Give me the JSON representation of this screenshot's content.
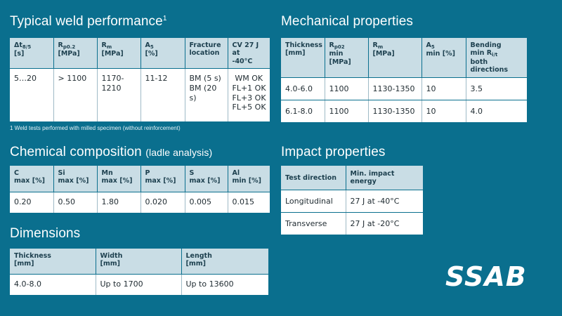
{
  "weld": {
    "title": "Typical weld performance",
    "title_sup": "1",
    "headers": {
      "delta_t": "Δt",
      "delta_t_sub": "8/5",
      "delta_t_unit": "[s]",
      "rp": "R",
      "rp_sub": "p0.2",
      "rp_unit": "[MPa]",
      "rm": "R",
      "rm_sub": "m",
      "rm_unit": "[MPa]",
      "a": "A",
      "a_sub": "5",
      "a_unit": "[%]",
      "fracture_1": "Fracture",
      "fracture_2": "location",
      "cv_1": "CV 27 J at",
      "cv_2": "-40°C"
    },
    "row": {
      "delta_t": "5…20",
      "rp": "> 1100",
      "rm_1": "1170-",
      "rm_2": "1210",
      "a": "11-12",
      "fracture_1": "BM (5 s)",
      "fracture_2": "BM (20 s)",
      "cv_1": "WM  OK",
      "cv_2": "FL+1  OK",
      "cv_3": "FL+3  OK",
      "cv_4": "FL+5  OK"
    },
    "footnote": "1 Weld tests performed with milled specimen (without reinforcement)"
  },
  "chemical": {
    "title": "Chemical composition",
    "subtitle": "(ladle analysis)",
    "headers": [
      {
        "el": "C",
        "unit": "max [%]"
      },
      {
        "el": "Si",
        "unit": "max [%]"
      },
      {
        "el": "Mn",
        "unit": "max [%]"
      },
      {
        "el": "P",
        "unit": "max [%]"
      },
      {
        "el": "S",
        "unit": "max [%]"
      },
      {
        "el": "Al",
        "unit": "min [%]"
      }
    ],
    "values": [
      "0.20",
      "0.50",
      "1.80",
      "0.020",
      "0.005",
      "0.015"
    ]
  },
  "dimensions": {
    "title": "Dimensions",
    "headers": [
      {
        "name": "Thickness",
        "unit": "[mm]"
      },
      {
        "name": "Width",
        "unit": "[mm]"
      },
      {
        "name": "Length",
        "unit": "[mm]"
      }
    ],
    "values": [
      "4.0-8.0",
      "Up to 1700",
      "Up to 13600"
    ]
  },
  "mechanical": {
    "title": "Mechanical properties",
    "headers": {
      "thickness_1": "Thickness",
      "thickness_2": "[mm]",
      "rp": "R",
      "rp_sub": "p02",
      "rp_unit": "min [MPa]",
      "rm": "R",
      "rm_sub": "m",
      "rm_unit": "[MPa]",
      "a": "A",
      "a_sub": "5",
      "a_unit": "min [%]",
      "bending_1": "Bending",
      "bending_2": "min R",
      "bending_sub": "i/t",
      "bending_3": "both directions"
    },
    "rows": [
      {
        "thickness": "4.0-6.0",
        "rp": "1100",
        "rm": "1130-1350",
        "a": "10",
        "bending": "3.5"
      },
      {
        "thickness": "6.1-8.0",
        "rp": "1100",
        "rm": "1130-1350",
        "a": "10",
        "bending": "4.0"
      }
    ]
  },
  "impact": {
    "title": "Impact properties",
    "headers": [
      "Test direction",
      "Min. impact energy"
    ],
    "rows": [
      {
        "direction": "Longitudinal",
        "energy": "27 J at -40°C"
      },
      {
        "direction": "Transverse",
        "energy": "27 J at -20°C"
      }
    ]
  },
  "logo": "SSAB"
}
